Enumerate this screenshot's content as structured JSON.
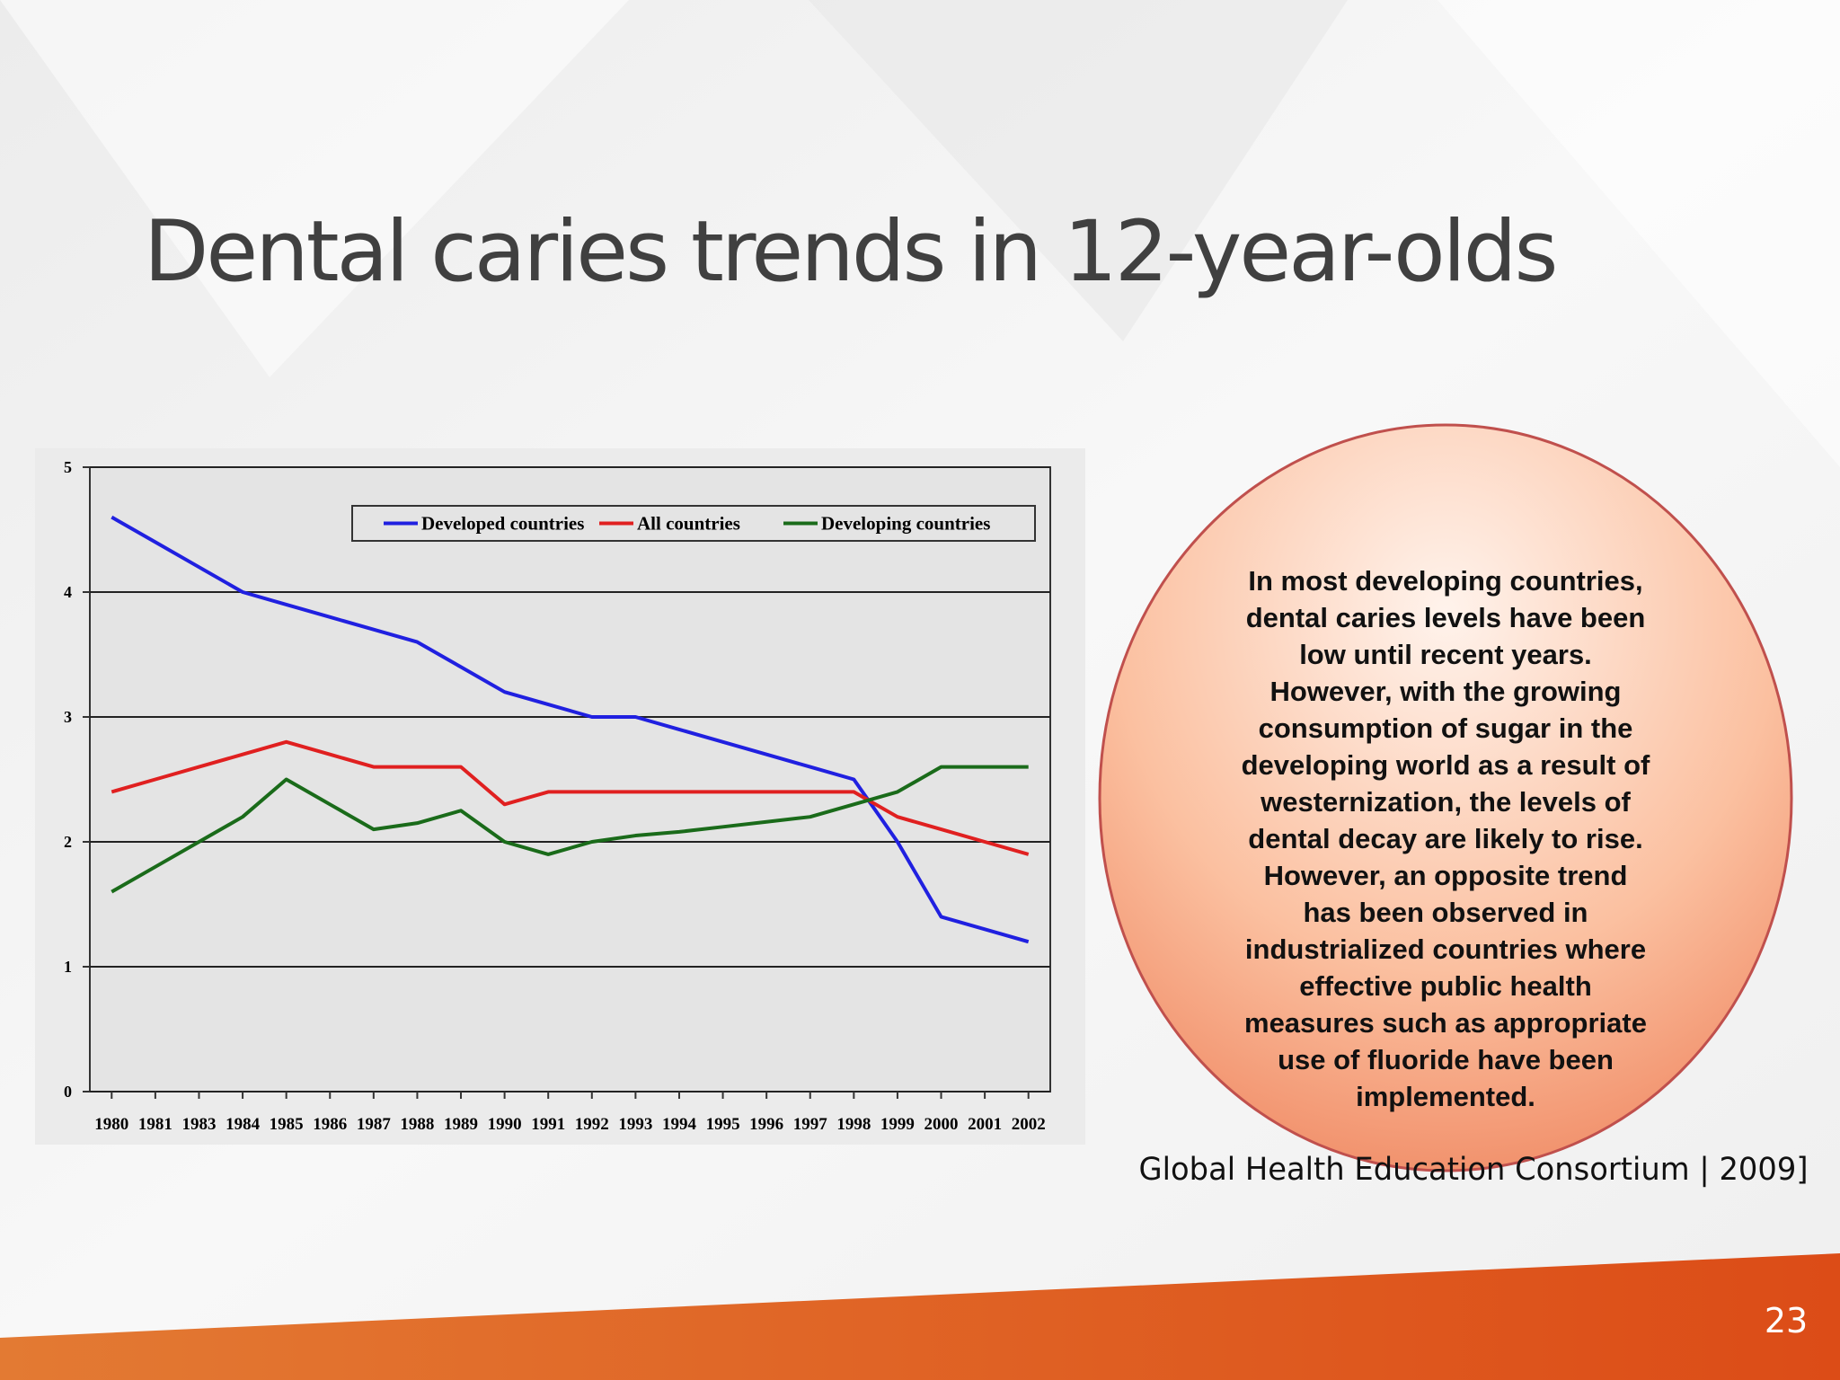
{
  "slide": {
    "title": "Dental caries trends in 12-year-olds",
    "page_number": "23"
  },
  "callout": {
    "lines": [
      "In most developing countries,",
      "dental caries levels have been",
      "low until recent years.",
      "However, with the growing",
      "consumption of sugar in the",
      "developing world as a result of",
      "westernization, the levels of",
      "dental decay are likely to rise.",
      "However, an opposite trend",
      "has been observed in",
      "industrialized countries where",
      "effective public health",
      "measures such as appropriate",
      "use of fluoride have been",
      "implemented."
    ]
  },
  "source": "Global Health Education Consortium | 2009]",
  "chart_data": {
    "type": "line",
    "categories": [
      "1980",
      "1981",
      "1983",
      "1984",
      "1985",
      "1986",
      "1987",
      "1988",
      "1989",
      "1990",
      "1991",
      "1992",
      "1993",
      "1994",
      "1995",
      "1996",
      "1997",
      "1998",
      "1999",
      "2000",
      "2001",
      "2002"
    ],
    "series": [
      {
        "name": "Developed countries",
        "color": "#2020e0",
        "values": [
          4.6,
          4.4,
          4.2,
          4.0,
          3.9,
          3.8,
          3.7,
          3.6,
          3.4,
          3.2,
          3.1,
          3.0,
          3.0,
          2.9,
          2.8,
          2.7,
          2.6,
          2.5,
          2.0,
          1.4,
          1.3,
          1.2
        ]
      },
      {
        "name": "All countries",
        "color": "#e02020",
        "values": [
          2.4,
          2.5,
          2.6,
          2.7,
          2.8,
          2.7,
          2.6,
          2.6,
          2.6,
          2.3,
          2.4,
          2.4,
          2.4,
          2.4,
          2.4,
          2.4,
          2.4,
          2.4,
          2.2,
          2.1,
          2.0,
          1.9
        ]
      },
      {
        "name": "Developing countries",
        "color": "#1a6b1a",
        "values": [
          1.6,
          1.8,
          2.0,
          2.2,
          2.5,
          2.3,
          2.1,
          2.15,
          2.25,
          2.0,
          1.9,
          2.0,
          2.05,
          2.08,
          2.12,
          2.16,
          2.2,
          2.3,
          2.4,
          2.6,
          2.6,
          2.6
        ]
      }
    ],
    "ylim": [
      0,
      5
    ],
    "yticks": [
      0,
      1,
      2,
      3,
      4,
      5
    ],
    "grid": true,
    "legend": "top"
  }
}
